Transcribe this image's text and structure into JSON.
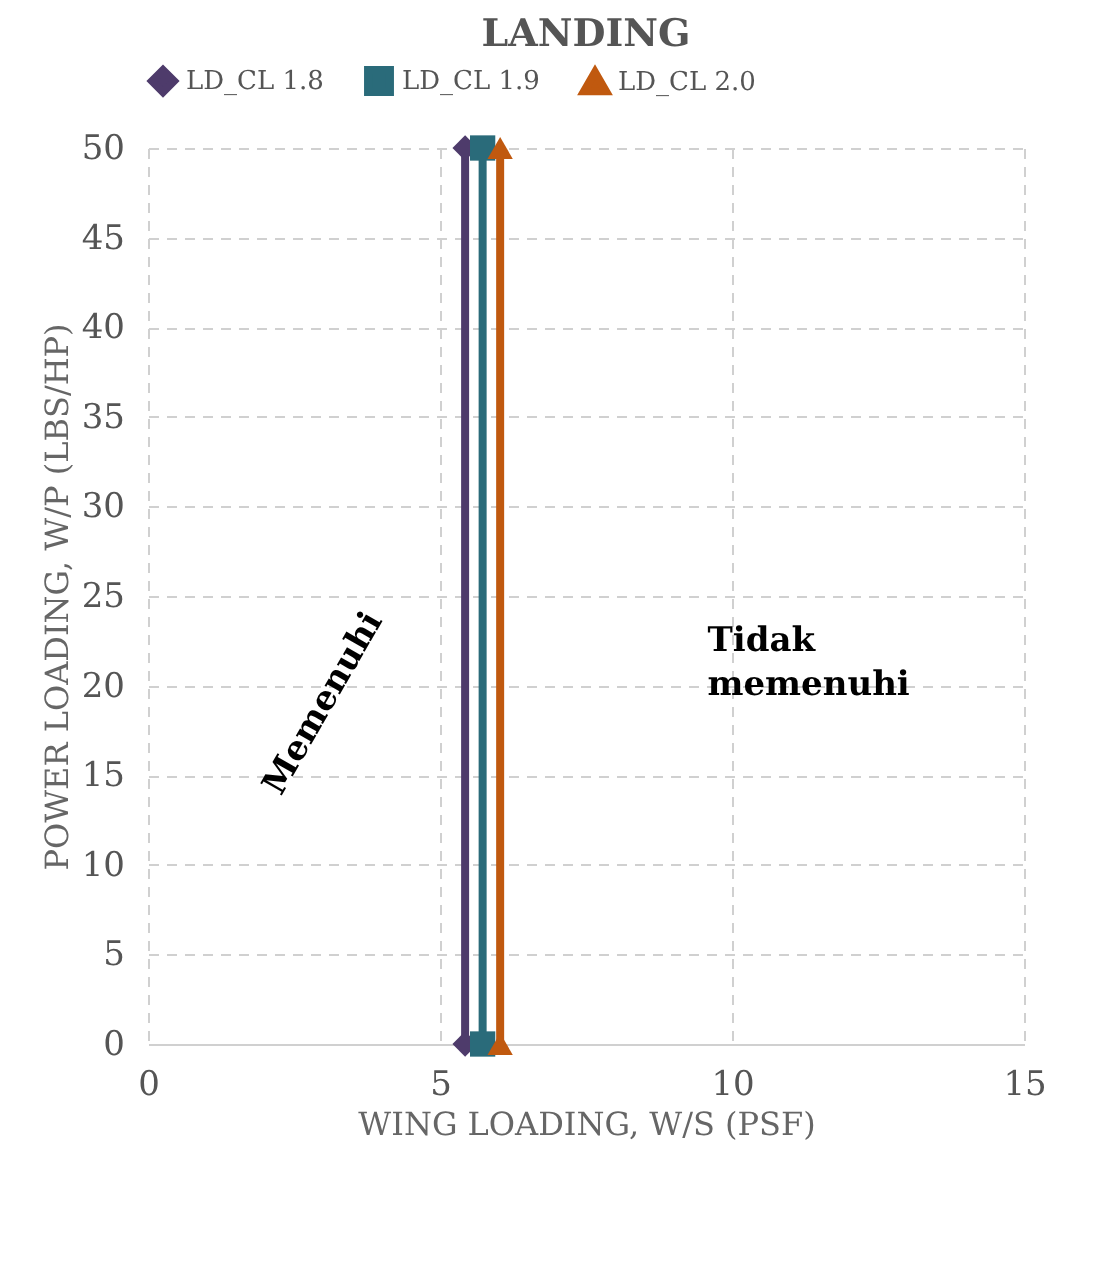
{
  "chart_data": {
    "type": "line",
    "title": "LANDING",
    "xlabel": "WING LOADING, W/S (PSF)",
    "ylabel": "POWER LOADING, W/P (LBS/HP)",
    "series": [
      {
        "name": "LD_CL 1.8",
        "color": "#4e3b6b",
        "marker": "diamond",
        "x": [
          5.43,
          5.43
        ],
        "values": [
          0,
          50
        ]
      },
      {
        "name": "LD_CL 1.9",
        "color": "#2a6b7a",
        "marker": "square",
        "x": [
          5.73,
          5.73
        ],
        "values": [
          0,
          50
        ]
      },
      {
        "name": "LD_CL 2.0",
        "color": "#c0590f",
        "marker": "triangle",
        "x": [
          6.03,
          6.03
        ],
        "values": [
          0,
          50
        ]
      }
    ],
    "xlim": [
      0,
      15
    ],
    "xticks": [
      0,
      5,
      10,
      15
    ],
    "ylim": [
      0,
      50
    ],
    "yticks": [
      0,
      5,
      10,
      15,
      20,
      25,
      30,
      35,
      40,
      45,
      50
    ],
    "grid": true,
    "legend": "top",
    "line_style": "solid",
    "annotations": [
      "Memenuhi",
      "Tidak memenuhi"
    ]
  }
}
